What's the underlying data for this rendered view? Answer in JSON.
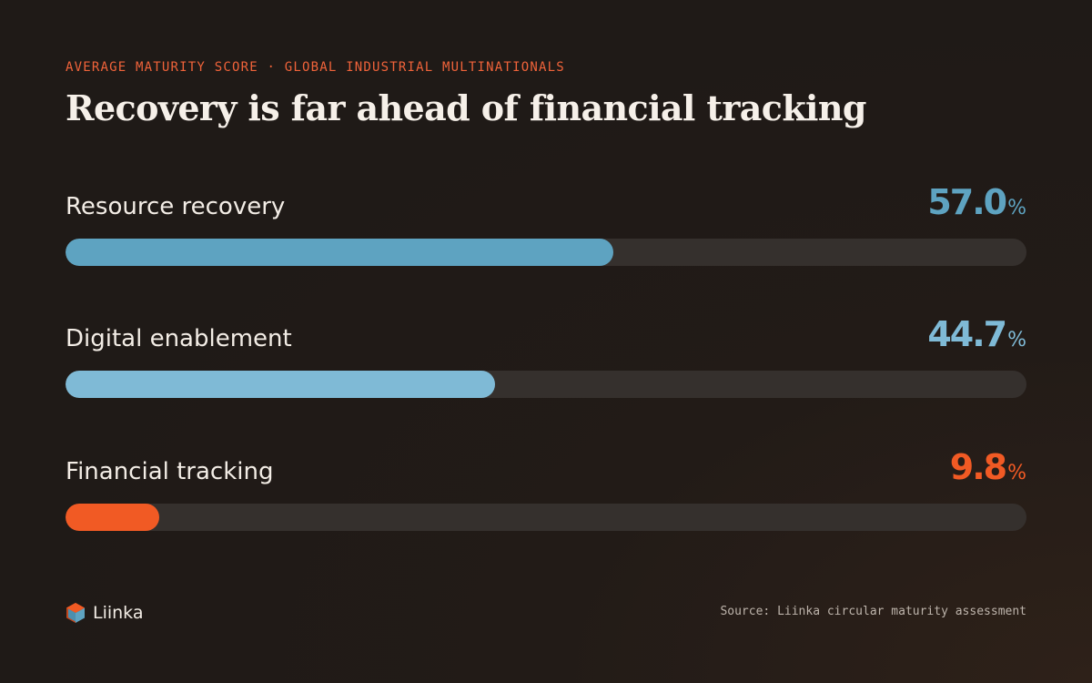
{
  "eyebrow": "AVERAGE MATURITY SCORE · GLOBAL INDUSTRIAL MULTINATIONALS",
  "title": "Recovery is far ahead of financial tracking",
  "chart_data": {
    "type": "bar",
    "orientation": "horizontal",
    "title": "Recovery is far ahead of financial tracking",
    "subtitle": "AVERAGE MATURITY SCORE · GLOBAL INDUSTRIAL MULTINATIONALS",
    "unit": "%",
    "xlim": [
      0,
      100
    ],
    "categories": [
      "Resource recovery",
      "Digital enablement",
      "Financial tracking"
    ],
    "values": [
      57.0,
      44.7,
      9.8
    ],
    "value_labels": [
      "57.0",
      "44.7",
      "9.8"
    ],
    "colors": [
      "#5ea3c1",
      "#7fbad6",
      "#f15a24"
    ],
    "track_color": "#35302d",
    "grid": false,
    "legend": "none"
  },
  "brand": {
    "name": "Liinka",
    "icon": "liinka-logo-icon"
  },
  "source": "Source: Liinka circular maturity assessment"
}
